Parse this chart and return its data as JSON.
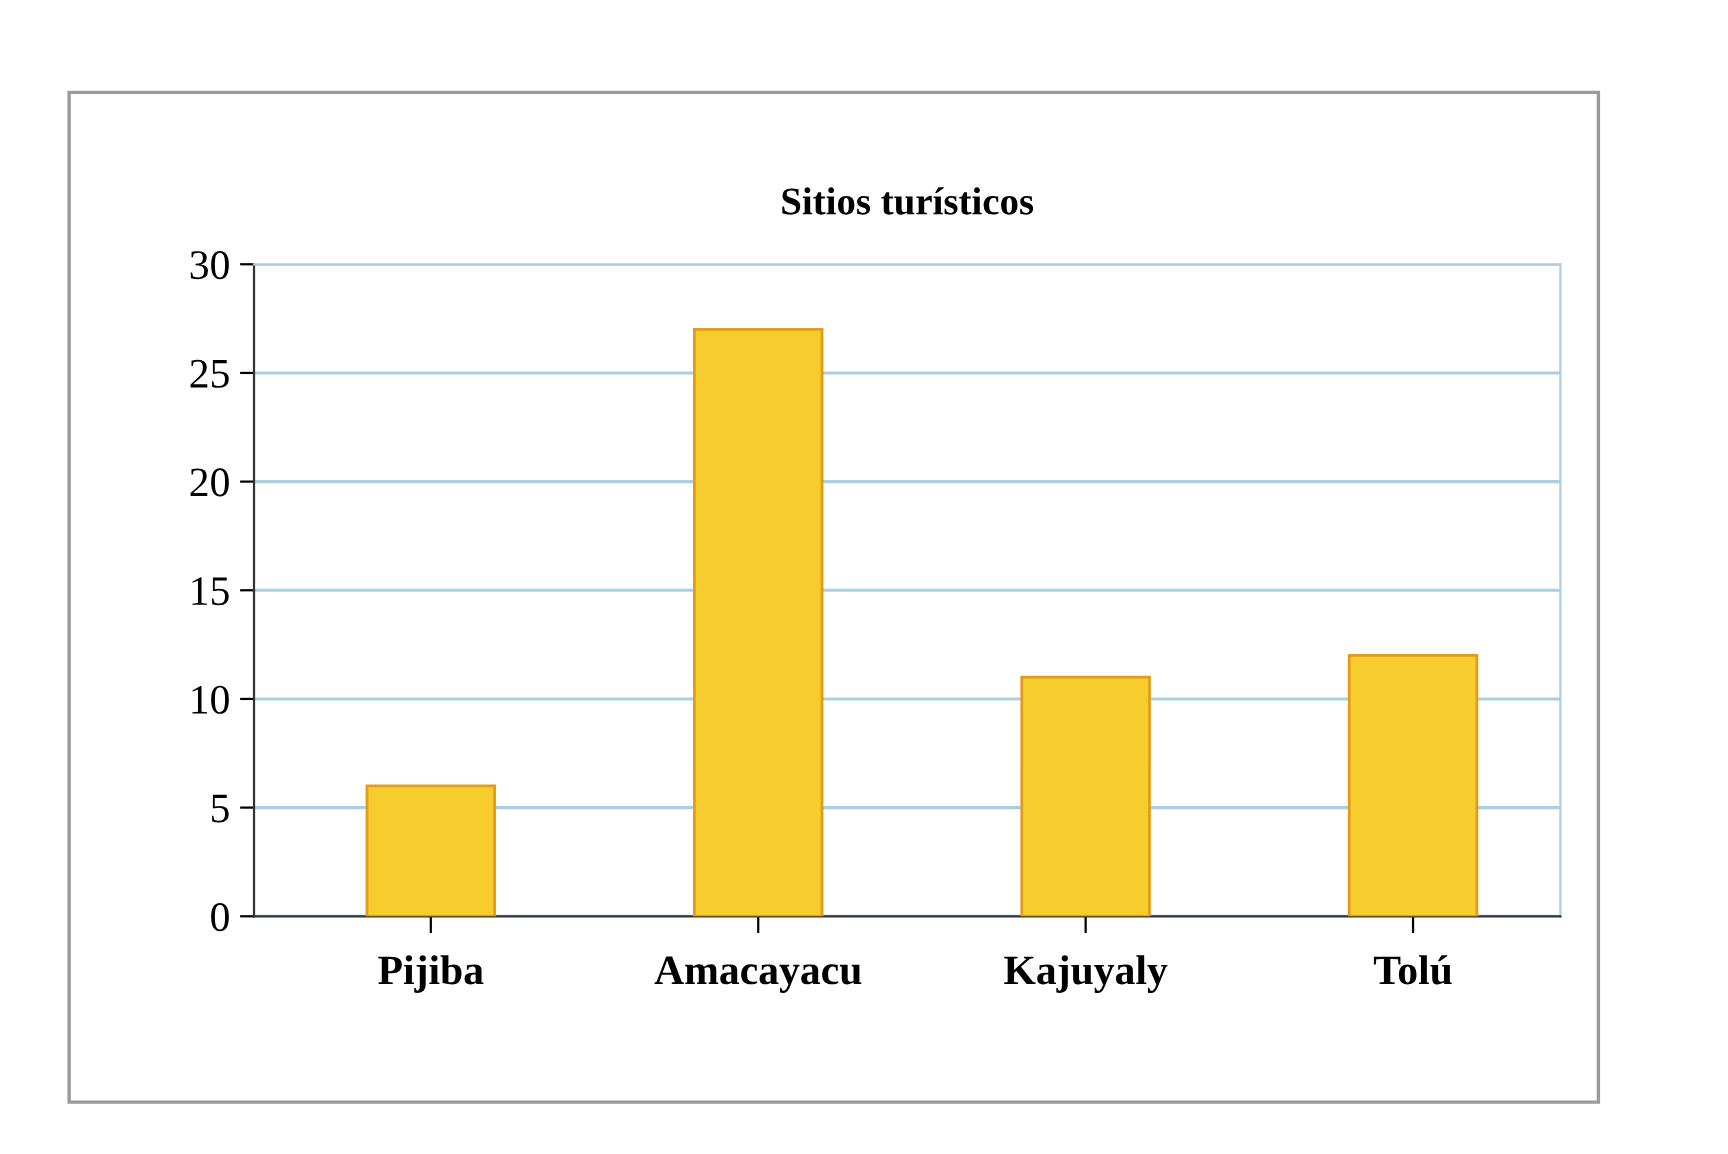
{
  "chart_data": {
    "type": "bar",
    "title": "Sitios turísticos",
    "categories": [
      "Pijiba",
      "Amacayacu",
      "Kajuyaly",
      "Tolú"
    ],
    "values": [
      6,
      27,
      11,
      12
    ],
    "color": "#f7cd2e",
    "ylim": [
      0,
      30
    ],
    "yticks": [
      0,
      5,
      10,
      15,
      20,
      25,
      30
    ],
    "grid": "y"
  }
}
